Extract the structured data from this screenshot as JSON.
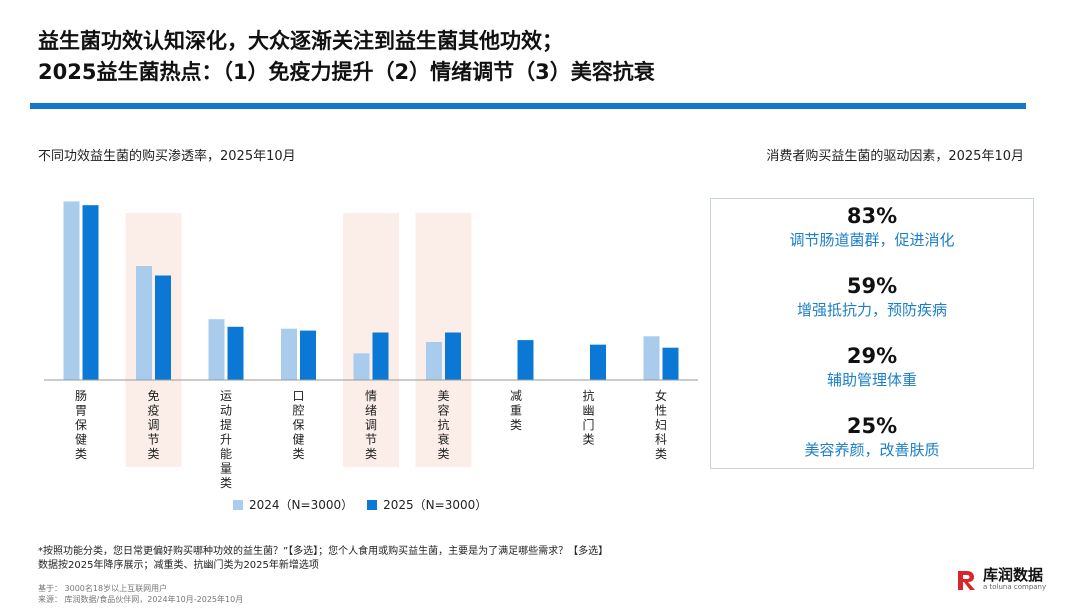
{
  "header": {
    "title_line1": "益生菌功效认知深化，大众逐渐关注到益生菌其他功效；",
    "title_line2": "2025益生菌热点：（1）免疫力提升（2）情绪调节（3）美容抗衰"
  },
  "left_subtitle": "不同功效益生菌的购买渗透率，2025年10月",
  "right_subtitle": "消费者购买益生菌的驱动因素，2025年10月",
  "colors": {
    "series_2024": "#a9cbec",
    "series_2025": "#0a78d4",
    "highlight": "#fbeee8",
    "accent": "#1577cc"
  },
  "chart_data": {
    "type": "bar",
    "categories": [
      "肠胃保健类",
      "免疫调节类",
      "运动提升能量类",
      "口腔保健类",
      "情绪调节类",
      "美容抗衰类",
      "减重类",
      "抗幽门类",
      "女性妇科类"
    ],
    "series": [
      {
        "name": "2024（N=3000）",
        "values": [
          47,
          30,
          16,
          13.5,
          7,
          10,
          null,
          null,
          11.5
        ]
      },
      {
        "name": "2025（N=3000）",
        "values": [
          46,
          27.5,
          14,
          13,
          12.5,
          12.5,
          10.5,
          9.3,
          8.5
        ]
      }
    ],
    "highlighted": [
      "免疫调节类",
      "情绪调节类",
      "美容抗衰类"
    ],
    "ylim": [
      0,
      50
    ],
    "legend_position": "bottom",
    "grid": false
  },
  "drivers": [
    {
      "pct": "83%",
      "label": "调节肠道菌群，促进消化"
    },
    {
      "pct": "59%",
      "label": "增强抵抗力，预防疾病"
    },
    {
      "pct": "29%",
      "label": "辅助管理体重"
    },
    {
      "pct": "25%",
      "label": "美容养颜，改善肤质"
    }
  ],
  "footnote": {
    "line1": "*按照功能分类，您日常更偏好购买哪种功效的益生菌？”【多选】；您个人食用或购买益生菌，主要是为了满足哪些需求？【多选】",
    "line2": "数据按2025年降序展示；减重类、抗幽门类为2025年新增选项",
    "base": "基于：   3000名18岁以上互联网用户",
    "source": "来源：   库润数据/食品伙伴网，2024年10月-2025年10月"
  },
  "logo": {
    "brand": "库润数据",
    "tagline": "a toluna company"
  }
}
